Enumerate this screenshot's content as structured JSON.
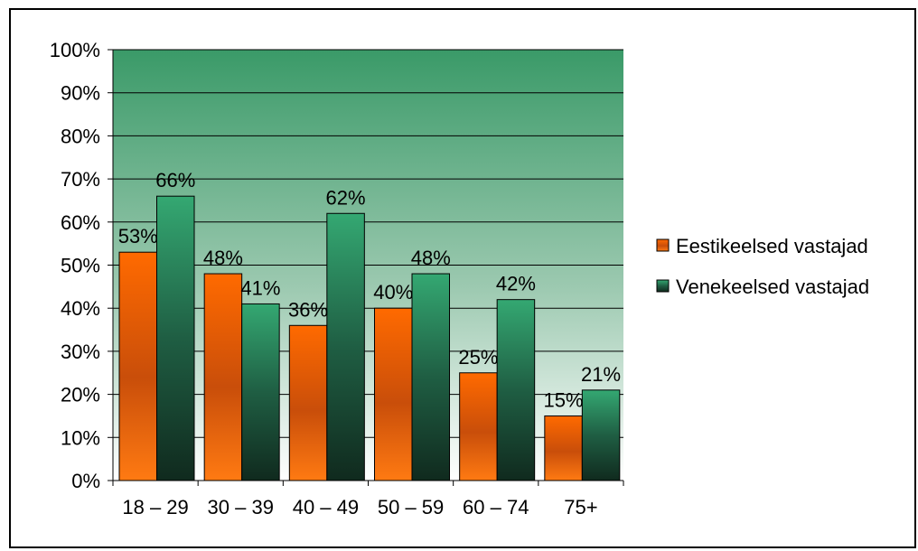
{
  "chart_data": {
    "type": "bar",
    "categories": [
      "18 – 29",
      "30 – 39",
      "40 – 49",
      "50 – 59",
      "60 – 74",
      "75+"
    ],
    "series": [
      {
        "name": "Eestikeelsed vastajad",
        "values": [
          53,
          48,
          36,
          40,
          25,
          15
        ],
        "color": "#ff6a00"
      },
      {
        "name": "Venekeelsed vastajad",
        "values": [
          66,
          41,
          62,
          48,
          42,
          21
        ],
        "color": "#2e9a66"
      }
    ],
    "data_labels": [
      [
        "53%",
        "48%",
        "36%",
        "40%",
        "25%",
        "15%"
      ],
      [
        "66%",
        "41%",
        "62%",
        "48%",
        "42%",
        "21%"
      ]
    ],
    "y_ticks": [
      "0%",
      "10%",
      "20%",
      "30%",
      "40%",
      "50%",
      "60%",
      "70%",
      "80%",
      "90%",
      "100%"
    ],
    "ylim": [
      0,
      100
    ],
    "grid": true,
    "legend": "right",
    "plot_background": "green-gradient"
  }
}
